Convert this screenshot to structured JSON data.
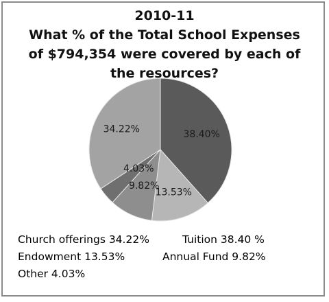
{
  "chart_data": {
    "type": "pie",
    "title_lines": [
      "2010-11",
      "What % of the Total School Expenses",
      "of $794,354 were covered by each of",
      "the resources?"
    ],
    "slices": [
      {
        "label": "38.40%",
        "value": 38.4,
        "color": "#5a5a5a"
      },
      {
        "label": "13.53%",
        "value": 13.53,
        "color": "#b6b6b6"
      },
      {
        "label": "9.82%",
        "value": 9.82,
        "color": "#8e8e8e"
      },
      {
        "label": "4.03%",
        "value": 4.03,
        "color": "#6f6f6f"
      },
      {
        "label": "34.22%",
        "value": 34.22,
        "color": "#a3a3a3"
      }
    ],
    "legend_text": [
      "Church offerings 34.22%",
      "Tuition  38.40 %",
      "Endowment 13.53%",
      "Annual Fund 9.82%",
      "Other 4.03%"
    ]
  }
}
